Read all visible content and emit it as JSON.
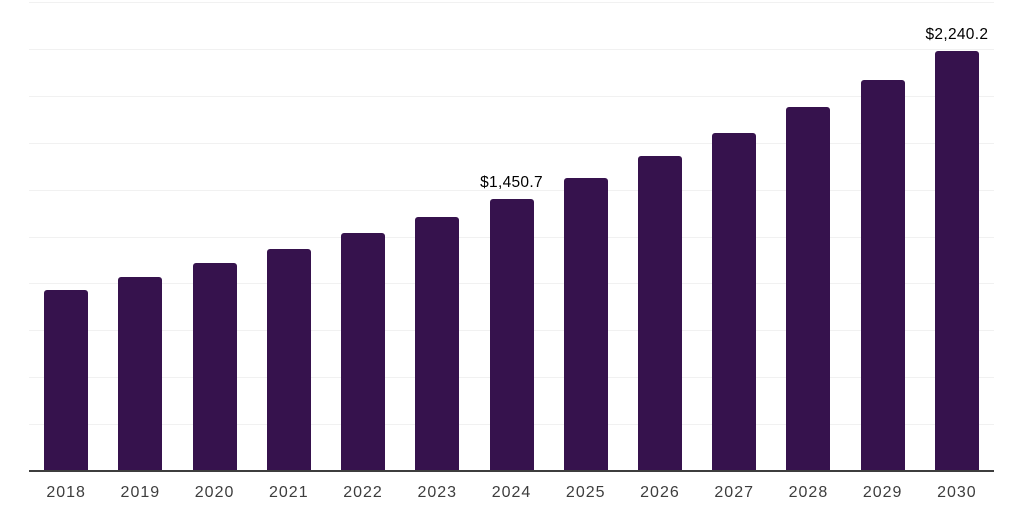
{
  "chart_data": {
    "type": "bar",
    "title": "",
    "categories": [
      "2018",
      "2019",
      "2020",
      "2021",
      "2022",
      "2023",
      "2024",
      "2025",
      "2026",
      "2027",
      "2028",
      "2029",
      "2030"
    ],
    "values": [
      966.8,
      1034.5,
      1106.9,
      1184.4,
      1267.3,
      1356.0,
      1450.7,
      1559.6,
      1676.7,
      1802.6,
      1938.0,
      2083.5,
      2240.2
    ],
    "data_labels": {
      "2024": "$1,450.7",
      "2030": "$2,240.2"
    },
    "xlabel": "",
    "ylabel": "",
    "ylim": [
      0,
      2500
    ],
    "y_gridline_interval": 250,
    "y_axis_labels_visible": false,
    "legend": "none",
    "grid": "horizontal",
    "colors": {
      "bar": "#36124D",
      "gridline": "#f1f1f1",
      "axis_line": "#3d3d3d",
      "tick_label": "#3d3d3d",
      "value_label": "#000000",
      "background": "#ffffff"
    }
  }
}
